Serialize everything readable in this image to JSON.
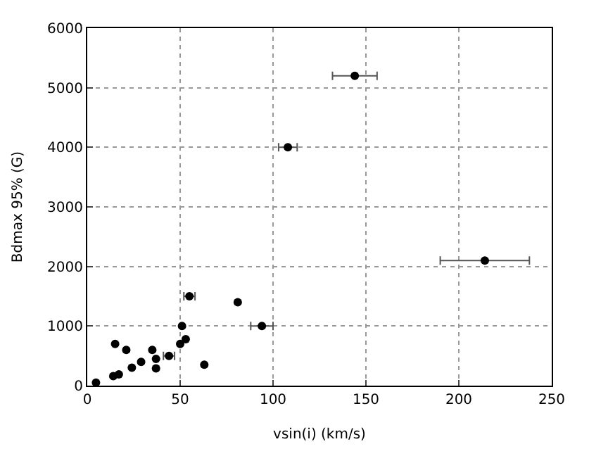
{
  "chart_data": {
    "type": "scatter",
    "xlabel": "vsin(i) (km/s)",
    "ylabel": "Bdmax 95% (G)",
    "x": [
      4.7,
      14,
      17,
      15,
      21,
      24,
      29,
      35,
      37,
      37,
      44,
      50,
      51,
      53,
      55,
      63,
      81,
      94,
      144,
      108,
      214
    ],
    "values": [
      50,
      160,
      190,
      700,
      600,
      300,
      400,
      600,
      450,
      290,
      500,
      700,
      1000,
      780,
      1500,
      350,
      1400,
      1000,
      5200,
      4000,
      2100
    ],
    "color": "#000000",
    "xerrors": [
      null,
      null,
      null,
      null,
      null,
      null,
      null,
      null,
      null,
      null,
      3,
      null,
      null,
      null,
      3,
      null,
      null,
      6,
      12,
      5,
      24
    ],
    "xlim": [
      0,
      250
    ],
    "xticks": [
      0,
      50,
      100,
      150,
      200,
      250
    ],
    "ylim": [
      0,
      6000
    ],
    "yticks": [
      0,
      1000,
      2000,
      3000,
      4000,
      5000,
      6000
    ],
    "grid": true
  }
}
